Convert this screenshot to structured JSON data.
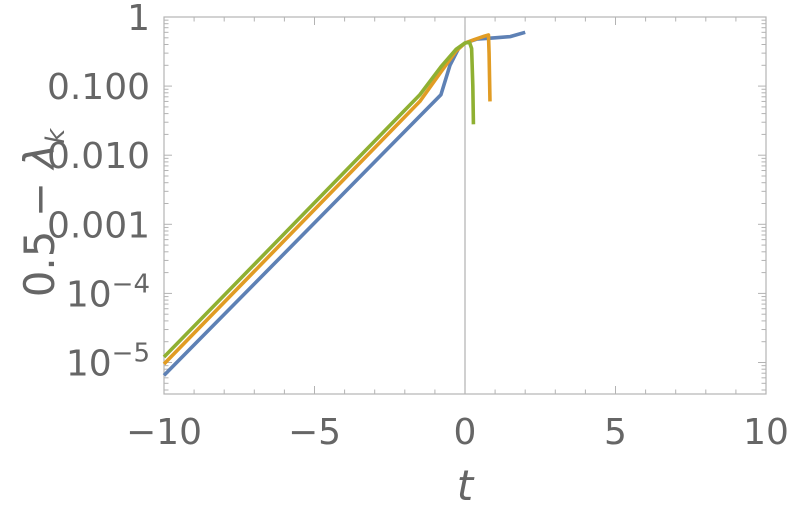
{
  "chart_data": {
    "type": "line",
    "xlabel": "t",
    "ylabel_main": "0.5 − ",
    "ylabel_sym": "λ",
    "ylabel_sub": "k",
    "xlim": [
      -10,
      10
    ],
    "ylim": [
      3.5e-06,
      1.0
    ],
    "y_scale": "log",
    "x_ticks": [
      {
        "v": -10,
        "label": "−10"
      },
      {
        "v": -5,
        "label": "−5"
      },
      {
        "v": 0,
        "label": "0"
      },
      {
        "v": 5,
        "label": "5"
      },
      {
        "v": 10,
        "label": "10"
      }
    ],
    "y_ticks": [
      {
        "v": 1,
        "label": "1",
        "base": "1",
        "exp": ""
      },
      {
        "v": 0.1,
        "label": "0.100",
        "base": "0.100",
        "exp": ""
      },
      {
        "v": 0.01,
        "label": "0.010",
        "base": "0.010",
        "exp": ""
      },
      {
        "v": 0.001,
        "label": "0.001",
        "base": "0.001",
        "exp": ""
      },
      {
        "v": 0.0001,
        "label": "10^-4",
        "base": "10",
        "exp": "−4"
      },
      {
        "v": 1e-05,
        "label": "10^-5",
        "base": "10",
        "exp": "−5"
      }
    ],
    "series": [
      {
        "color": "#5e81b5",
        "points": [
          [
            -10,
            6.5e-06
          ],
          [
            -0.8,
            0.075
          ],
          [
            -0.5,
            0.2
          ],
          [
            -0.2,
            0.36
          ],
          [
            0,
            0.42
          ],
          [
            0.4,
            0.48
          ],
          [
            1.0,
            0.5
          ],
          [
            1.5,
            0.52
          ],
          [
            2.0,
            0.6
          ]
        ]
      },
      {
        "color": "#e19c24",
        "points": [
          [
            -10,
            9.5e-06
          ],
          [
            -1.5,
            0.06
          ],
          [
            -0.8,
            0.16
          ],
          [
            -0.3,
            0.32
          ],
          [
            0,
            0.42
          ],
          [
            0.3,
            0.47
          ],
          [
            0.65,
            0.53
          ],
          [
            0.78,
            0.55
          ],
          [
            0.8,
            0.3
          ],
          [
            0.83,
            0.06
          ]
        ]
      },
      {
        "color": "#8fb032",
        "points": [
          [
            -10,
            1.2e-05
          ],
          [
            -1.5,
            0.075
          ],
          [
            -0.8,
            0.19
          ],
          [
            -0.3,
            0.34
          ],
          [
            0,
            0.42
          ],
          [
            0.15,
            0.43
          ],
          [
            0.22,
            0.35
          ],
          [
            0.26,
            0.1
          ],
          [
            0.28,
            0.028
          ]
        ]
      }
    ],
    "grid": false,
    "legend": "none",
    "zero_line": true
  }
}
